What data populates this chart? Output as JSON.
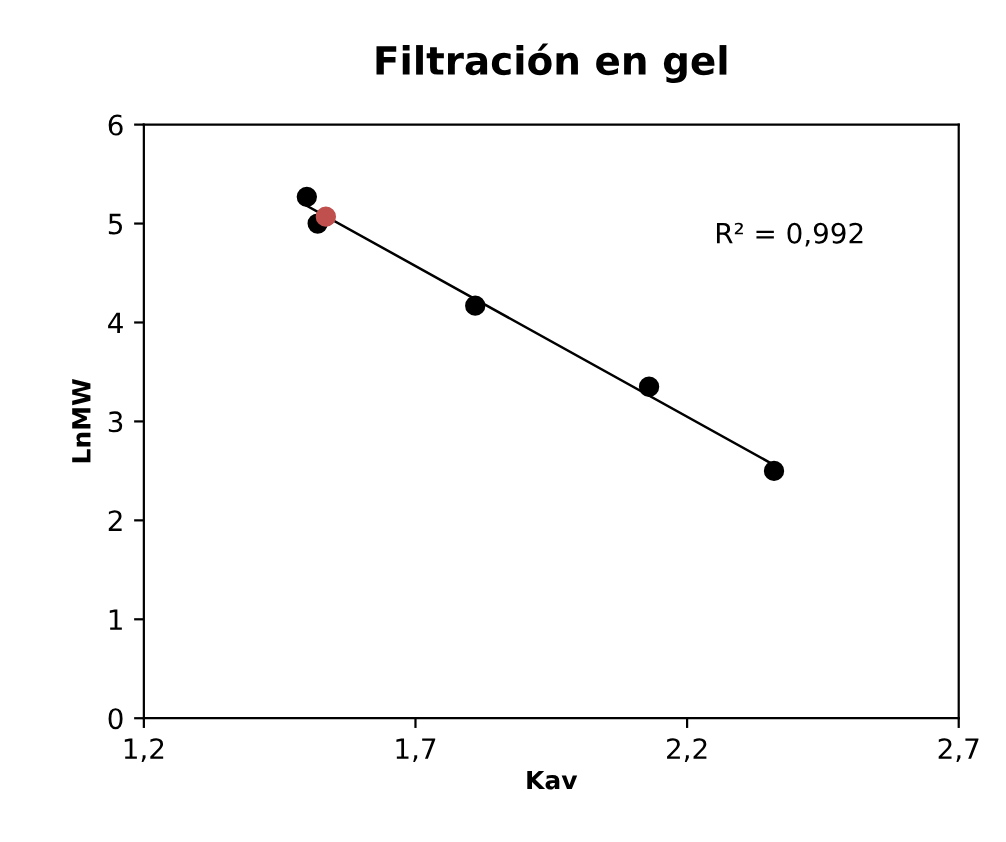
{
  "chart_data": {
    "type": "scatter",
    "title": "Filtración en gel",
    "xlabel": "Kav",
    "ylabel": "LnMW",
    "series": [
      {
        "color": "#000000",
        "x": [
          1.5,
          1.52,
          1.81,
          2.13,
          2.36
        ],
        "values": [
          5.27,
          5.0,
          4.17,
          3.35,
          2.5
        ]
      },
      {
        "color": "#c0504d",
        "x": [
          1.535
        ],
        "values": [
          5.07
        ]
      },
      {
        "type": "line",
        "color": "#000000",
        "x": [
          1.5,
          2.36
        ],
        "values": [
          5.18,
          2.56
        ]
      }
    ],
    "annotations": [
      "R² = 0,992"
    ],
    "xlim": [
      1.2,
      2.7
    ],
    "xticks": [
      {
        "value": 1.2,
        "label": "1,2"
      },
      {
        "value": 1.7,
        "label": "1,7"
      },
      {
        "value": 2.2,
        "label": "2,2"
      },
      {
        "value": 2.7,
        "label": "2,7"
      }
    ],
    "ylim": [
      0,
      6
    ],
    "yticks": [
      0,
      1,
      2,
      3,
      4,
      5,
      6
    ],
    "grid": false,
    "legend": false
  }
}
